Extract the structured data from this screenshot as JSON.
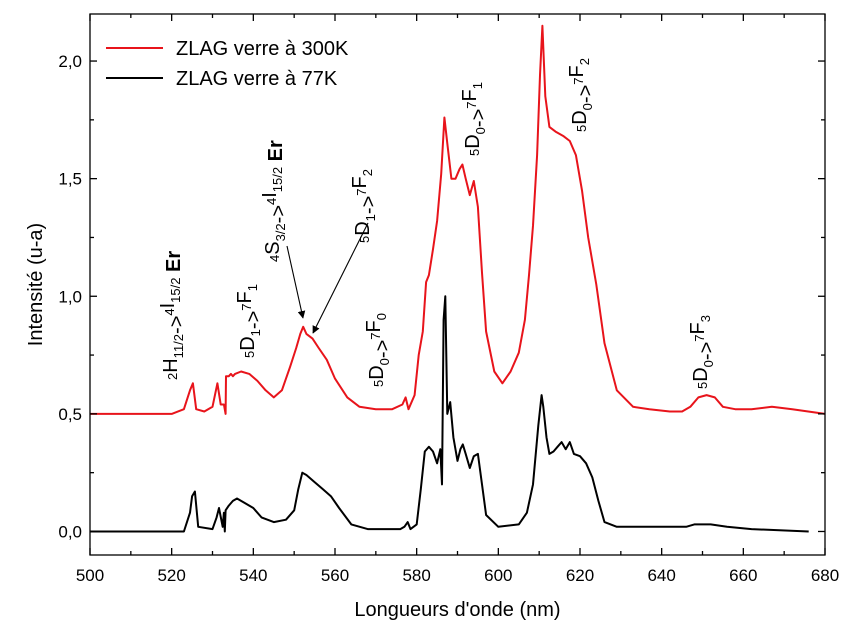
{
  "chart_data": {
    "type": "line",
    "xlabel": "Longueurs d'onde (nm)",
    "ylabel": "Intensité (u-a)",
    "xlim": [
      500,
      680
    ],
    "ylim": [
      -0.1,
      2.2
    ],
    "x_ticks": [
      500,
      520,
      540,
      560,
      580,
      600,
      620,
      640,
      660,
      680
    ],
    "x_tick_labels": [
      "500",
      "520",
      "540",
      "560",
      "580",
      "600",
      "620",
      "640",
      "660",
      "680"
    ],
    "y_ticks": [
      0.0,
      0.5,
      1.0,
      1.5,
      2.0
    ],
    "y_tick_labels": [
      "0,0",
      "0,5",
      "1,0",
      "1,5",
      "2,0"
    ],
    "grid": false,
    "legend_position": "top-left",
    "series": [
      {
        "name": "ZLAG verre à 300K",
        "color": "#e8141b",
        "x": [
          500,
          520,
          523,
          524.5,
          525.2,
          526,
          528,
          530,
          531.2,
          532,
          532.8,
          533.2,
          533.3,
          534,
          534.5,
          535,
          535.5,
          537,
          539,
          541,
          543,
          545,
          547,
          549,
          550.5,
          551.5,
          552.2,
          553,
          554.5,
          556,
          558,
          560,
          563,
          566,
          570,
          574,
          576.5,
          577.3,
          578,
          579.5,
          580.5,
          581.5,
          582.3,
          583,
          584,
          585,
          586,
          586.8,
          587.5,
          588.5,
          589.5,
          590.5,
          591.2,
          592,
          593,
          594,
          595,
          596,
          597,
          599,
          601,
          603,
          605,
          606.5,
          607.5,
          608.5,
          609.5,
          610.2,
          610.8,
          611.5,
          612.5,
          614,
          616,
          617.5,
          619,
          620.5,
          622,
          624,
          626,
          629,
          633,
          637,
          642,
          645,
          647,
          649,
          651,
          653,
          655,
          658,
          662,
          667,
          672,
          680
        ],
        "y": [
          0.5,
          0.5,
          0.52,
          0.6,
          0.63,
          0.52,
          0.51,
          0.53,
          0.63,
          0.54,
          0.54,
          0.5,
          0.66,
          0.66,
          0.67,
          0.66,
          0.67,
          0.68,
          0.67,
          0.64,
          0.6,
          0.57,
          0.6,
          0.7,
          0.78,
          0.84,
          0.87,
          0.84,
          0.82,
          0.78,
          0.73,
          0.65,
          0.57,
          0.53,
          0.52,
          0.52,
          0.54,
          0.57,
          0.52,
          0.58,
          0.75,
          0.85,
          1.06,
          1.09,
          1.2,
          1.32,
          1.52,
          1.76,
          1.65,
          1.5,
          1.5,
          1.54,
          1.56,
          1.5,
          1.43,
          1.49,
          1.38,
          1.1,
          0.85,
          0.68,
          0.63,
          0.68,
          0.76,
          0.9,
          1.09,
          1.3,
          1.6,
          1.94,
          2.15,
          1.85,
          1.72,
          1.7,
          1.68,
          1.66,
          1.6,
          1.45,
          1.25,
          1.05,
          0.8,
          0.6,
          0.53,
          0.52,
          0.51,
          0.51,
          0.53,
          0.57,
          0.58,
          0.57,
          0.53,
          0.52,
          0.52,
          0.53,
          0.52,
          0.5
        ]
      },
      {
        "name": "ZLAG verre à 77K",
        "color": "#000000",
        "x": [
          500,
          523,
          524.5,
          525,
          525.7,
          526.5,
          530,
          531,
          531.6,
          532.5,
          532.8,
          533,
          533.2,
          534,
          535,
          536,
          537,
          538,
          540,
          542,
          545,
          548,
          550,
          551,
          552,
          553,
          555,
          557,
          559,
          561,
          564,
          568,
          572,
          576,
          577,
          577.8,
          578.5,
          580,
          581,
          582,
          583,
          584,
          585,
          585.8,
          586.2,
          586.6,
          587,
          587.5,
          588.2,
          589,
          590,
          590.7,
          591.3,
          592,
          593,
          594,
          595,
          596,
          597,
          600,
          605,
          607,
          608.5,
          609.8,
          610.6,
          611,
          611.8,
          612.5,
          613.5,
          614.5,
          615.5,
          616.5,
          617.5,
          618.5,
          620,
          621.5,
          623,
          624.5,
          626,
          629,
          640,
          646,
          648,
          652,
          656,
          662,
          676
        ],
        "y": [
          0,
          0,
          0.08,
          0.15,
          0.17,
          0.02,
          0.01,
          0.06,
          0.1,
          0.02,
          0.08,
          0.0,
          0.09,
          0.11,
          0.13,
          0.14,
          0.13,
          0.12,
          0.1,
          0.06,
          0.04,
          0.05,
          0.09,
          0.18,
          0.25,
          0.24,
          0.21,
          0.18,
          0.15,
          0.1,
          0.03,
          0.01,
          0.01,
          0.01,
          0.02,
          0.04,
          0.01,
          0.03,
          0.18,
          0.34,
          0.36,
          0.34,
          0.29,
          0.35,
          0.2,
          0.9,
          1.0,
          0.5,
          0.55,
          0.4,
          0.3,
          0.35,
          0.37,
          0.33,
          0.27,
          0.32,
          0.33,
          0.2,
          0.07,
          0.02,
          0.03,
          0.08,
          0.2,
          0.45,
          0.58,
          0.53,
          0.4,
          0.33,
          0.34,
          0.36,
          0.38,
          0.35,
          0.38,
          0.33,
          0.32,
          0.29,
          0.23,
          0.13,
          0.04,
          0.02,
          0.02,
          0.02,
          0.03,
          0.03,
          0.02,
          0.01,
          0.0
        ]
      }
    ],
    "annotations": [
      {
        "id": "er-4i",
        "parts": [
          [
            "sup",
            "2"
          ],
          [
            "n",
            "H"
          ],
          [
            "sub",
            "11/2"
          ],
          [
            "n",
            "->"
          ],
          [
            "sup",
            "4"
          ],
          [
            "n",
            "I"
          ],
          [
            "sub",
            "15/2"
          ],
          [
            "b",
            " Er"
          ]
        ]
      },
      {
        "id": "d1-f1",
        "parts": [
          [
            "sup",
            "5"
          ],
          [
            "n",
            "D"
          ],
          [
            "sub",
            "1"
          ],
          [
            "n",
            "->"
          ],
          [
            "sup",
            "7"
          ],
          [
            "n",
            "F"
          ],
          [
            "sub",
            "1"
          ]
        ]
      },
      {
        "id": "er-4s",
        "parts": [
          [
            "sup",
            "4"
          ],
          [
            "n",
            "S"
          ],
          [
            "sub",
            "3/2"
          ],
          [
            "n",
            "->"
          ],
          [
            "sup",
            "4"
          ],
          [
            "n",
            "I"
          ],
          [
            "sub",
            "15/2"
          ],
          [
            "b",
            " Er"
          ]
        ]
      },
      {
        "id": "d1-f2",
        "parts": [
          [
            "sup",
            "5"
          ],
          [
            "n",
            "D"
          ],
          [
            "sub",
            "1"
          ],
          [
            "n",
            "->"
          ],
          [
            "sup",
            "7"
          ],
          [
            "n",
            "F"
          ],
          [
            "sub",
            "2"
          ]
        ]
      },
      {
        "id": "d0-f0",
        "parts": [
          [
            "sup",
            "5"
          ],
          [
            "n",
            "D"
          ],
          [
            "sub",
            "0"
          ],
          [
            "n",
            "->"
          ],
          [
            "sup",
            "7"
          ],
          [
            "n",
            "F"
          ],
          [
            "sub",
            "0"
          ]
        ]
      },
      {
        "id": "d0-f1",
        "parts": [
          [
            "sup",
            "5"
          ],
          [
            "n",
            "D"
          ],
          [
            "sub",
            "0"
          ],
          [
            "n",
            "->"
          ],
          [
            "sup",
            "7"
          ],
          [
            "n",
            "F"
          ],
          [
            "sub",
            "1"
          ]
        ]
      },
      {
        "id": "d0-f2",
        "parts": [
          [
            "sup",
            "5"
          ],
          [
            "n",
            "D"
          ],
          [
            "sub",
            "0"
          ],
          [
            "n",
            "->"
          ],
          [
            "sup",
            "7"
          ],
          [
            "n",
            "F"
          ],
          [
            "sub",
            "2"
          ]
        ]
      },
      {
        "id": "d0-f3",
        "parts": [
          [
            "sup",
            "5"
          ],
          [
            "n",
            "D"
          ],
          [
            "sub",
            "0"
          ],
          [
            "n",
            "->"
          ],
          [
            "sup",
            "7"
          ],
          [
            "n",
            "F"
          ],
          [
            "sub",
            "3"
          ]
        ]
      }
    ]
  }
}
